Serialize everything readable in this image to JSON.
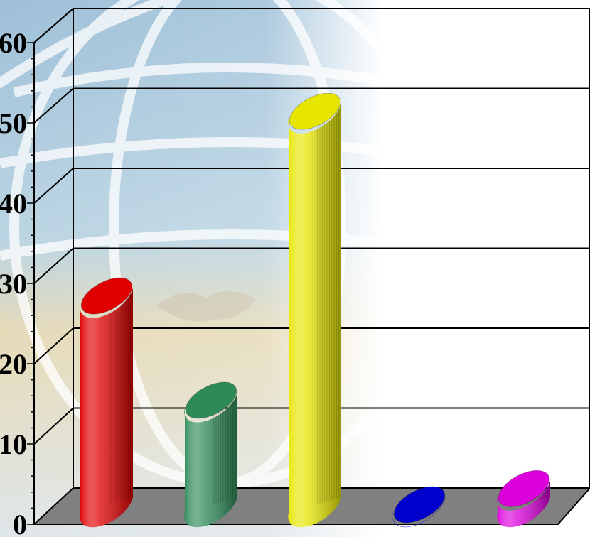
{
  "chart_data": {
    "type": "bar",
    "style": "3d-cylinder",
    "title": "",
    "xlabel": "",
    "ylabel": "",
    "ylim": [
      0,
      60
    ],
    "y_ticks": [
      "0",
      "10",
      "20",
      "30",
      "40",
      "50",
      "60"
    ],
    "grid": true,
    "legend": "none",
    "categories": [
      "",
      "",
      "",
      "",
      ""
    ],
    "values": [
      28,
      15,
      51,
      2,
      4
    ],
    "colors": [
      "#e00000",
      "#2e8b57",
      "#e6e600",
      "#0000cc",
      "#dd00dd"
    ]
  },
  "background": {
    "sky": "#a9c8dc",
    "globe_lines": "#ffffff",
    "lower": "#e8d7a8",
    "floor": "#808080"
  }
}
